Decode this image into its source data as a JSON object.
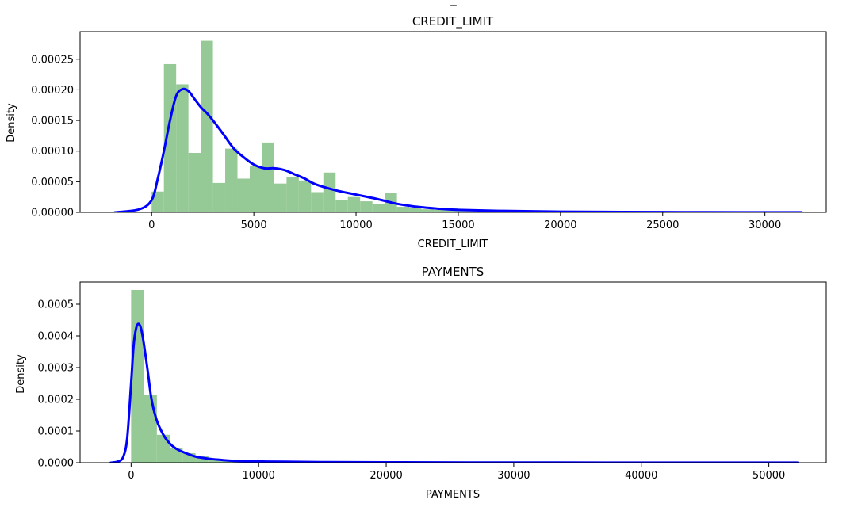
{
  "figure_top_title_fragment": "_",
  "chart_data": [
    {
      "type": "histogram+kde",
      "title": "CREDIT_LIMIT",
      "xlabel": "CREDIT_LIMIT",
      "ylabel": "Density",
      "xlim": [
        -3500,
        33000
      ],
      "ylim": [
        0,
        0.000295
      ],
      "xticks": [
        0,
        5000,
        10000,
        15000,
        20000,
        25000,
        30000
      ],
      "xtick_labels": [
        "0",
        "5000",
        "10000",
        "15000",
        "20000",
        "25000",
        "30000"
      ],
      "yticks": [
        0,
        5e-05,
        0.0001,
        0.00015,
        0.0002,
        0.00025
      ],
      "ytick_labels": [
        "0.00000",
        "0.00005",
        "0.00010",
        "0.00015",
        "0.00020",
        "0.00025"
      ],
      "hist_color": "#95c995",
      "kde_color": "#0000ff",
      "histogram": {
        "bin_start": 0,
        "bin_width": 600,
        "density": [
          3.4e-05,
          0.000242,
          0.000209,
          9.7e-05,
          0.00028,
          4.8e-05,
          0.000104,
          5.5e-05,
          7.5e-05,
          0.000114,
          4.7e-05,
          5.8e-05,
          5.2e-05,
          3.3e-05,
          6.5e-05,
          2e-05,
          2.5e-05,
          1.8e-05,
          1.4e-05,
          3.2e-05,
          9e-06,
          7e-06,
          5e-06,
          4e-06,
          7e-06,
          3e-06,
          3e-06,
          2e-06,
          2e-06,
          1e-06,
          1e-06,
          1e-06,
          1e-06,
          1e-06,
          5e-07,
          5e-07,
          5e-07,
          5e-07,
          5e-07,
          5e-07,
          5e-07,
          3e-07,
          3e-07,
          3e-07,
          3e-07,
          3e-07,
          3e-07,
          3e-07,
          3e-07,
          3e-07
        ]
      },
      "kde": {
        "x": [
          -1800,
          -600,
          0,
          300,
          600,
          900,
          1200,
          1500,
          1800,
          2100,
          2400,
          2700,
          3000,
          3500,
          4000,
          4500,
          5000,
          5500,
          6000,
          6500,
          7000,
          7500,
          8000,
          9000,
          10000,
          11000,
          12000,
          13000,
          14000,
          15000,
          17000,
          20000,
          23000,
          26000,
          29000,
          31800
        ],
        "y": [
          0,
          5e-06,
          2e-05,
          5.5e-05,
          0.0001,
          0.00015,
          0.00019,
          0.000201,
          0.000198,
          0.000185,
          0.000172,
          0.000162,
          0.00015,
          0.000128,
          0.000105,
          9e-05,
          7.8e-05,
          7.2e-05,
          7.2e-05,
          6.9e-05,
          6.2e-05,
          5.5e-05,
          4.6e-05,
          3.6e-05,
          2.9e-05,
          2.2e-05,
          1.4e-05,
          9e-06,
          6e-06,
          4e-06,
          2.5e-06,
          1.2e-06,
          6e-07,
          4e-07,
          2e-07,
          1e-07
        ]
      }
    },
    {
      "type": "histogram+kde",
      "title": "PAYMENTS",
      "xlabel": "PAYMENTS",
      "ylabel": "Density",
      "xlim": [
        -4000,
        54500
      ],
      "ylim": [
        0,
        0.00057
      ],
      "xticks": [
        0,
        10000,
        20000,
        30000,
        40000,
        50000
      ],
      "xtick_labels": [
        "0",
        "10000",
        "20000",
        "30000",
        "40000",
        "50000"
      ],
      "yticks": [
        0,
        0.0001,
        0.0002,
        0.0003,
        0.0004,
        0.0005
      ],
      "ytick_labels": [
        "0.0000",
        "0.0001",
        "0.0002",
        "0.0003",
        "0.0004",
        "0.0005"
      ],
      "hist_color": "#95c995",
      "kde_color": "#0000ff",
      "histogram": {
        "bin_start": 0,
        "bin_width": 1010,
        "density": [
          0.000545,
          0.000215,
          8.8e-05,
          4.5e-05,
          3e-05,
          2e-05,
          1.2e-05,
          8e-06,
          6e-06,
          4e-06,
          3e-06,
          2.5e-06,
          2e-06,
          1.5e-06,
          1.2e-06,
          1e-06,
          1e-06,
          8e-07,
          7e-07,
          6e-07,
          5e-07,
          5e-07,
          4e-07,
          4e-07,
          3e-07,
          3e-07,
          3e-07,
          2e-07,
          2e-07,
          2e-07,
          2e-07,
          2e-07,
          1e-07,
          1e-07,
          1e-07,
          1e-07,
          1e-07,
          1e-07,
          1e-07,
          1e-07,
          1e-07,
          1e-07,
          1e-07,
          1e-07,
          1e-07,
          1e-07,
          1e-07,
          1e-07,
          1e-07,
          1e-07,
          1e-07
        ]
      },
      "kde": {
        "x": [
          -1600,
          -1000,
          -600,
          -300,
          0,
          200,
          400,
          600,
          800,
          1000,
          1300,
          1600,
          2000,
          2500,
          3000,
          3500,
          4000,
          5000,
          6000,
          7000,
          8000,
          10000,
          12000,
          15000,
          20000,
          30000,
          40000,
          52300
        ],
        "y": [
          0,
          4e-06,
          2e-05,
          8e-05,
          0.00025,
          0.00037,
          0.000425,
          0.000438,
          0.00042,
          0.000375,
          0.00029,
          0.0002,
          0.000135,
          9e-05,
          6.2e-05,
          4.5e-05,
          3.5e-05,
          2e-05,
          1.3e-05,
          9e-06,
          6e-06,
          4e-06,
          3e-06,
          2e-06,
          1.2e-06,
          6e-07,
          3e-07,
          2e-07
        ]
      }
    }
  ]
}
